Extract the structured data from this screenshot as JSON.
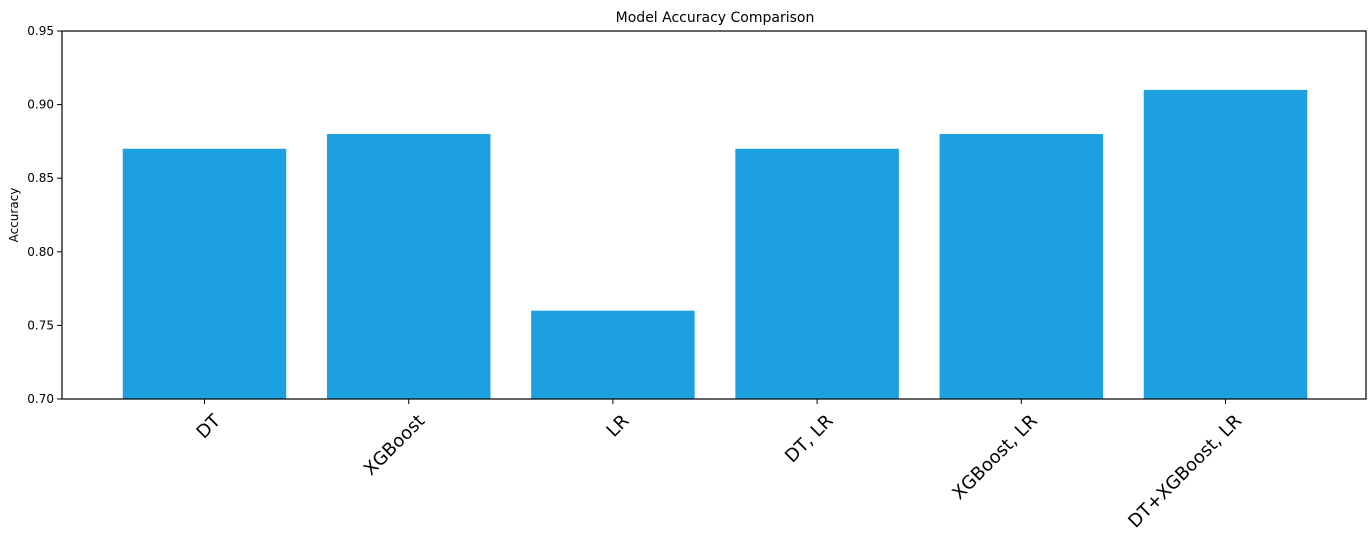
{
  "chart_data": {
    "type": "bar",
    "title": "Model Accuracy Comparison",
    "xlabel": "",
    "ylabel": "Accuracy",
    "categories": [
      "DT",
      "XGBoost",
      "LR",
      "DT, LR",
      "XGBoost, LR",
      "DT+XGBoost, LR"
    ],
    "values": [
      0.87,
      0.88,
      0.76,
      0.87,
      0.88,
      0.91
    ],
    "ylim": [
      0.7,
      0.95
    ],
    "yticks": [
      "0.70",
      "0.75",
      "0.80",
      "0.85",
      "0.90",
      "0.95"
    ],
    "bar_color": "#1ca0e0",
    "grid": false,
    "xtick_rotation": "45 degrees"
  }
}
